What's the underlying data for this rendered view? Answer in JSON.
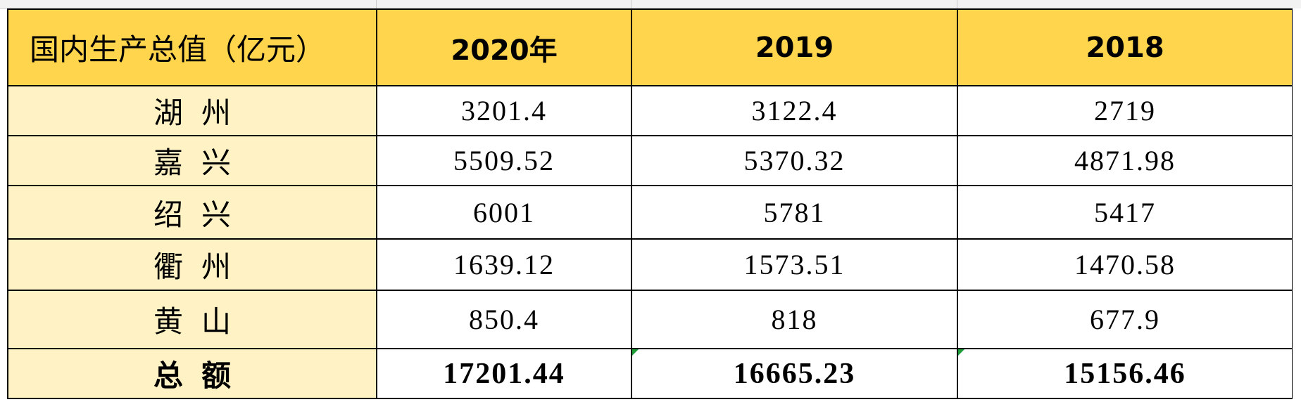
{
  "table": {
    "header": {
      "corner": "国内生产总值（亿元）",
      "years": [
        "2020年",
        "2019",
        "2018"
      ]
    },
    "rows": [
      {
        "region": "湖州",
        "values": [
          "3201.4",
          "3122.4",
          "2719"
        ]
      },
      {
        "region": "嘉兴",
        "values": [
          "5509.52",
          "5370.32",
          "4871.98"
        ]
      },
      {
        "region": "绍兴",
        "values": [
          "6001",
          "5781",
          "5417"
        ]
      },
      {
        "region": "衢州",
        "values": [
          "1639.12",
          "1573.51",
          "1470.58"
        ]
      },
      {
        "region": "黄山",
        "values": [
          "850.4",
          "818",
          "677.9"
        ]
      }
    ],
    "total": {
      "region": "总额",
      "values": [
        "17201.44",
        "16665.23",
        "15156.46"
      ]
    }
  },
  "colors": {
    "header_fill": "#ffd54d",
    "label_fill": "#fff2c4",
    "cell_fill": "#ffffff",
    "grid": "#000000",
    "error_flag": "#1f9d3a"
  }
}
